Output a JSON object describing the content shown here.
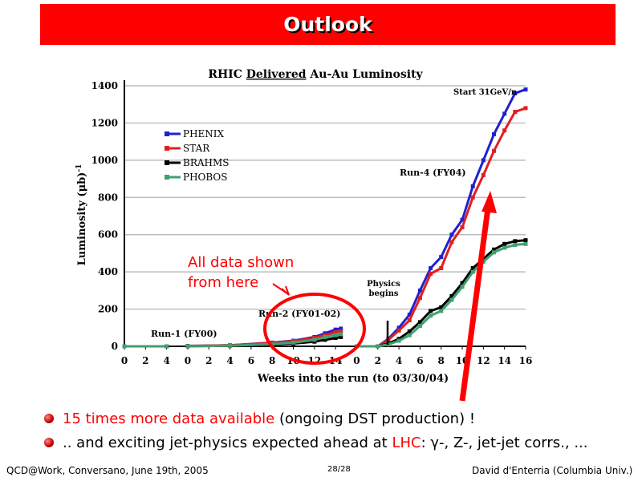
{
  "slide": {
    "title": "Outlook",
    "bullets": [
      {
        "pre": "",
        "red": "15 times more data available",
        "post": " (ongoing DST production) !"
      },
      {
        "pre": ".. and exciting jet-physics expected ahead at ",
        "red": "LHC",
        "post": ": γ-, Z-, jet-jet corrs., ..."
      }
    ],
    "annotation": [
      "All data shown",
      "from here"
    ],
    "footer": {
      "left": "QCD@Work, Conversano, June 19th, 2005",
      "center": "28/28",
      "right": "David d'Enterria (Columbia Univ.)"
    },
    "colors": {
      "title_bar": "#ff0000",
      "accent": "#ff0000"
    }
  },
  "chart_data": {
    "type": "line",
    "title": "RHIC Delivered Au-Au Luminosity",
    "title_underlined_word": "Delivered",
    "xlabel": "Weeks into the run  (to 03/30/04)",
    "ylabel": "Luminosity (μb)",
    "ylabel_exp": "-1",
    "ylim": [
      0,
      1400
    ],
    "yticks": [
      0,
      200,
      400,
      600,
      800,
      1000,
      1200,
      1400
    ],
    "xtick_labels": [
      "0",
      "2",
      "4",
      "0",
      "2",
      "4",
      "6",
      "8",
      "10",
      "12",
      "14",
      "0",
      "2",
      "4",
      "6",
      "8",
      "10",
      "12",
      "14",
      "16"
    ],
    "grid": true,
    "legend_position": "top-left",
    "runs": [
      {
        "label": "Run-1 (FY00)",
        "weeks": [
          0,
          4
        ]
      },
      {
        "label": "Run-2 (FY01-02)",
        "weeks": [
          0,
          14
        ]
      },
      {
        "label": "Run-4 (FY04)",
        "weeks": [
          0,
          16
        ]
      }
    ],
    "annotations": [
      "Start 31GeV/n",
      "Physics",
      "begins"
    ],
    "series": [
      {
        "name": "PHENIX",
        "color": "#2020d0",
        "run1": [
          [
            0,
            0
          ],
          [
            4,
            0
          ]
        ],
        "run2": [
          [
            0,
            2
          ],
          [
            4,
            5
          ],
          [
            8,
            20
          ],
          [
            10,
            30
          ],
          [
            12,
            50
          ],
          [
            13,
            70
          ],
          [
            14,
            90
          ],
          [
            14.5,
            95
          ]
        ],
        "run4": [
          [
            0,
            0
          ],
          [
            2,
            0
          ],
          [
            3,
            40
          ],
          [
            4,
            100
          ],
          [
            5,
            170
          ],
          [
            6,
            300
          ],
          [
            7,
            420
          ],
          [
            8,
            480
          ],
          [
            9,
            600
          ],
          [
            10,
            680
          ],
          [
            11,
            860
          ],
          [
            12,
            1000
          ],
          [
            13,
            1140
          ],
          [
            14,
            1250
          ],
          [
            15,
            1360
          ],
          [
            16,
            1380
          ]
        ]
      },
      {
        "name": "STAR",
        "color": "#e02020",
        "run1": [
          [
            0,
            0
          ],
          [
            4,
            0
          ]
        ],
        "run2": [
          [
            0,
            2
          ],
          [
            4,
            5
          ],
          [
            8,
            18
          ],
          [
            10,
            28
          ],
          [
            12,
            45
          ],
          [
            13,
            60
          ],
          [
            14,
            75
          ],
          [
            14.5,
            80
          ]
        ],
        "run4": [
          [
            0,
            0
          ],
          [
            2,
            0
          ],
          [
            3,
            35
          ],
          [
            4,
            85
          ],
          [
            5,
            140
          ],
          [
            6,
            260
          ],
          [
            7,
            390
          ],
          [
            8,
            420
          ],
          [
            9,
            560
          ],
          [
            10,
            640
          ],
          [
            11,
            800
          ],
          [
            12,
            920
          ],
          [
            13,
            1050
          ],
          [
            14,
            1160
          ],
          [
            15,
            1260
          ],
          [
            16,
            1280
          ]
        ]
      },
      {
        "name": "BRAHMS",
        "color": "#000000",
        "run1": [
          [
            0,
            0
          ],
          [
            4,
            0
          ]
        ],
        "run2": [
          [
            0,
            1
          ],
          [
            4,
            3
          ],
          [
            8,
            10
          ],
          [
            10,
            15
          ],
          [
            12,
            25
          ],
          [
            13,
            35
          ],
          [
            14,
            45
          ],
          [
            14.5,
            50
          ]
        ],
        "run4": [
          [
            0,
            0
          ],
          [
            2,
            0
          ],
          [
            3,
            15
          ],
          [
            4,
            40
          ],
          [
            5,
            80
          ],
          [
            6,
            130
          ],
          [
            7,
            190
          ],
          [
            8,
            210
          ],
          [
            9,
            270
          ],
          [
            10,
            340
          ],
          [
            11,
            420
          ],
          [
            12,
            470
          ],
          [
            13,
            520
          ],
          [
            14,
            550
          ],
          [
            15,
            565
          ],
          [
            16,
            570
          ]
        ]
      },
      {
        "name": "PHOBOS",
        "color": "#40a070",
        "run1": [
          [
            0,
            0
          ],
          [
            4,
            0
          ]
        ],
        "run2": [
          [
            0,
            1
          ],
          [
            4,
            3
          ],
          [
            8,
            12
          ],
          [
            10,
            20
          ],
          [
            12,
            35
          ],
          [
            13,
            50
          ],
          [
            14,
            60
          ],
          [
            14.5,
            65
          ]
        ],
        "run4": [
          [
            0,
            0
          ],
          [
            2,
            0
          ],
          [
            3,
            10
          ],
          [
            4,
            30
          ],
          [
            5,
            60
          ],
          [
            6,
            110
          ],
          [
            7,
            165
          ],
          [
            8,
            190
          ],
          [
            9,
            250
          ],
          [
            10,
            320
          ],
          [
            11,
            400
          ],
          [
            12,
            455
          ],
          [
            13,
            505
          ],
          [
            14,
            530
          ],
          [
            15,
            545
          ],
          [
            16,
            550
          ]
        ]
      }
    ]
  }
}
